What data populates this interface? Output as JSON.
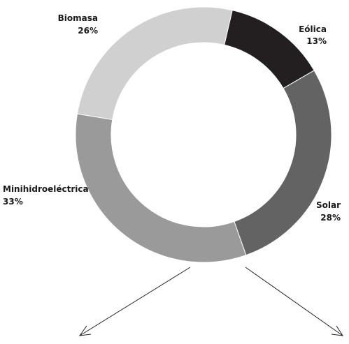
{
  "chart_data": {
    "type": "pie",
    "donut": true,
    "slices": [
      {
        "label": "Eólica",
        "value": 13,
        "value_label": "13%",
        "color": "#231f20"
      },
      {
        "label": "Solar",
        "value": 28,
        "value_label": "28%",
        "color": "#636363"
      },
      {
        "label": "Minihidroeléctrica",
        "value": 33,
        "value_label": "33%",
        "color": "#9a9a9a"
      },
      {
        "label": "Biomasa",
        "value": 26,
        "value_label": "26%",
        "color": "#d0d0d0"
      }
    ]
  }
}
